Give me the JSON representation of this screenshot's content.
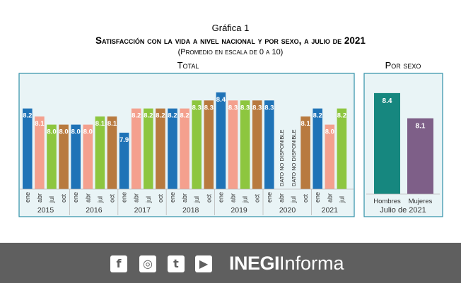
{
  "header": {
    "figure_label": "Gráfica 1",
    "title": "Satisfacción con la vida a nivel nacional y por sexo, a julio de 2021",
    "subtitle": "(Promedio en escala de 0 a 10)"
  },
  "colors": {
    "ene": "#1f73b7",
    "abr": "#f4a08e",
    "jul": "#8dc63f",
    "oct": "#b87a3f",
    "hombres": "#16877f",
    "mujeres": "#7e5f88",
    "panel_bg": "#e9f4f6",
    "panel_border": "#2f8fa8",
    "footer_bg": "#5f5f5f"
  },
  "chart_data": [
    {
      "type": "bar",
      "title": "Total",
      "unavailable_label": "DATO NO DISPONIBLE",
      "years": [
        "2015",
        "2016",
        "2017",
        "2018",
        "2019",
        "2020",
        "2021"
      ],
      "months": [
        "ene",
        "abr",
        "jul",
        "oct"
      ],
      "ylim": [
        7.2,
        8.6
      ],
      "bars": [
        {
          "year": "2015",
          "month": "ene",
          "value": 8.2,
          "label": "8.2"
        },
        {
          "year": "2015",
          "month": "abr",
          "value": 8.1,
          "label": "8.1"
        },
        {
          "year": "2015",
          "month": "jul",
          "value": 8.0,
          "label": "8.0"
        },
        {
          "year": "2015",
          "month": "oct",
          "value": 8.0,
          "label": "8.0"
        },
        {
          "year": "2016",
          "month": "ene",
          "value": 8.0,
          "label": "8.0"
        },
        {
          "year": "2016",
          "month": "abr",
          "value": 8.0,
          "label": "8.0"
        },
        {
          "year": "2016",
          "month": "jul",
          "value": 8.1,
          "label": "8.1"
        },
        {
          "year": "2016",
          "month": "oct",
          "value": 8.1,
          "label": "8.1"
        },
        {
          "year": "2017",
          "month": "ene",
          "value": 7.9,
          "label": "7.9"
        },
        {
          "year": "2017",
          "month": "abr",
          "value": 8.2,
          "label": "8.2"
        },
        {
          "year": "2017",
          "month": "jul",
          "value": 8.2,
          "label": "8.2"
        },
        {
          "year": "2017",
          "month": "oct",
          "value": 8.2,
          "label": "8.2"
        },
        {
          "year": "2018",
          "month": "ene",
          "value": 8.2,
          "label": "8.2"
        },
        {
          "year": "2018",
          "month": "abr",
          "value": 8.2,
          "label": "8.2"
        },
        {
          "year": "2018",
          "month": "jul",
          "value": 8.3,
          "label": "8.3"
        },
        {
          "year": "2018",
          "month": "oct",
          "value": 8.3,
          "label": "8.3"
        },
        {
          "year": "2019",
          "month": "ene",
          "value": 8.4,
          "label": "8.4"
        },
        {
          "year": "2019",
          "month": "abr",
          "value": 8.3,
          "label": "8.3"
        },
        {
          "year": "2019",
          "month": "jul",
          "value": 8.3,
          "label": "8.3"
        },
        {
          "year": "2019",
          "month": "oct",
          "value": 8.3,
          "label": "8.3"
        },
        {
          "year": "2020",
          "month": "ene",
          "value": 8.3,
          "label": "8.3"
        },
        {
          "year": "2020",
          "month": "abr",
          "value": null,
          "label": ""
        },
        {
          "year": "2020",
          "month": "jul",
          "value": null,
          "label": ""
        },
        {
          "year": "2020",
          "month": "oct",
          "value": 8.1,
          "label": "8.1"
        },
        {
          "year": "2021",
          "month": "ene",
          "value": 8.2,
          "label": "8.2"
        },
        {
          "year": "2021",
          "month": "abr",
          "value": 8.0,
          "label": "8.0"
        },
        {
          "year": "2021",
          "month": "jul",
          "value": 8.2,
          "label": "8.2"
        }
      ]
    },
    {
      "type": "bar",
      "title": "Por sexo",
      "xlabel": "Julio de 2021",
      "categories": [
        "Hombres",
        "Mujeres"
      ],
      "values": [
        8.4,
        8.1
      ],
      "labels": [
        "8.4",
        "8.1"
      ],
      "ylim": [
        7.2,
        8.6
      ]
    }
  ],
  "footer": {
    "social_icons": [
      "facebook-icon",
      "instagram-icon",
      "twitter-icon",
      "youtube-icon"
    ],
    "brand_bold": "INEGI",
    "brand_light": "Informa"
  }
}
